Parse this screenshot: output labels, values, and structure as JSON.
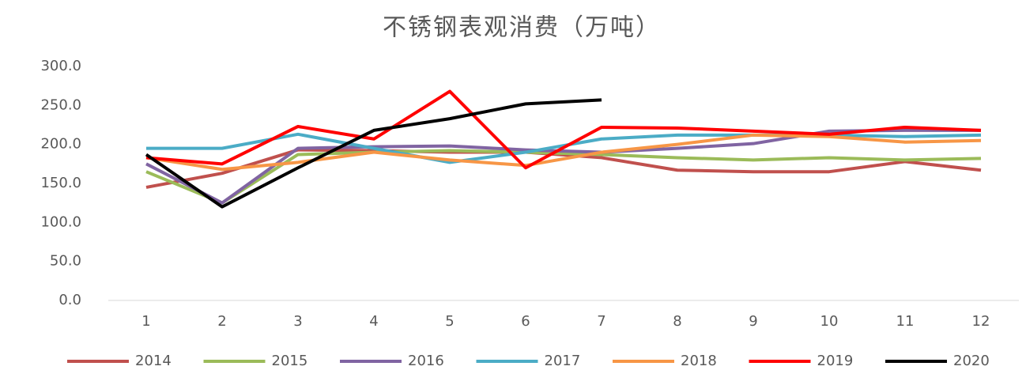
{
  "chart_data": {
    "type": "line",
    "title": "不锈钢表观消费（万吨）",
    "categories": [
      "1",
      "2",
      "3",
      "4",
      "5",
      "6",
      "7",
      "8",
      "9",
      "10",
      "11",
      "12"
    ],
    "ylim": [
      0,
      300
    ],
    "yticks": [
      {
        "value": 0,
        "label": "0.0"
      },
      {
        "value": 50,
        "label": "50.0"
      },
      {
        "value": 100,
        "label": "100.0"
      },
      {
        "value": 150,
        "label": "150.0"
      },
      {
        "value": 200,
        "label": "200.0"
      },
      {
        "value": 250,
        "label": "250.0"
      },
      {
        "value": 300,
        "label": "300.0"
      }
    ],
    "grid": false,
    "legend": "bottom",
    "series": [
      {
        "name": "2014",
        "color": "#c0504d",
        "values": [
          145,
          163,
          193,
          192,
          190,
          190,
          183,
          167,
          165,
          165,
          178,
          167
        ]
      },
      {
        "name": "2015",
        "color": "#9bbb59",
        "values": [
          165,
          125,
          187,
          190,
          192,
          190,
          187,
          183,
          180,
          183,
          180,
          182
        ]
      },
      {
        "name": "2016",
        "color": "#8064a2",
        "values": [
          175,
          125,
          195,
          197,
          198,
          193,
          190,
          195,
          201,
          217,
          218,
          218
        ]
      },
      {
        "name": "2017",
        "color": "#4bacc6",
        "values": [
          195,
          195,
          213,
          195,
          177,
          190,
          207,
          212,
          212,
          212,
          210,
          212
        ]
      },
      {
        "name": "2018",
        "color": "#f79646",
        "values": [
          183,
          168,
          177,
          190,
          180,
          173,
          190,
          200,
          212,
          210,
          203,
          205
        ]
      },
      {
        "name": "2019",
        "color": "#ff0000",
        "values": [
          183,
          175,
          223,
          207,
          268,
          170,
          222,
          221,
          217,
          213,
          222,
          218
        ]
      },
      {
        "name": "2020",
        "color": "#000000",
        "values": [
          187,
          120,
          170,
          218,
          233,
          252,
          257,
          null,
          null,
          null,
          null,
          null
        ]
      }
    ]
  }
}
